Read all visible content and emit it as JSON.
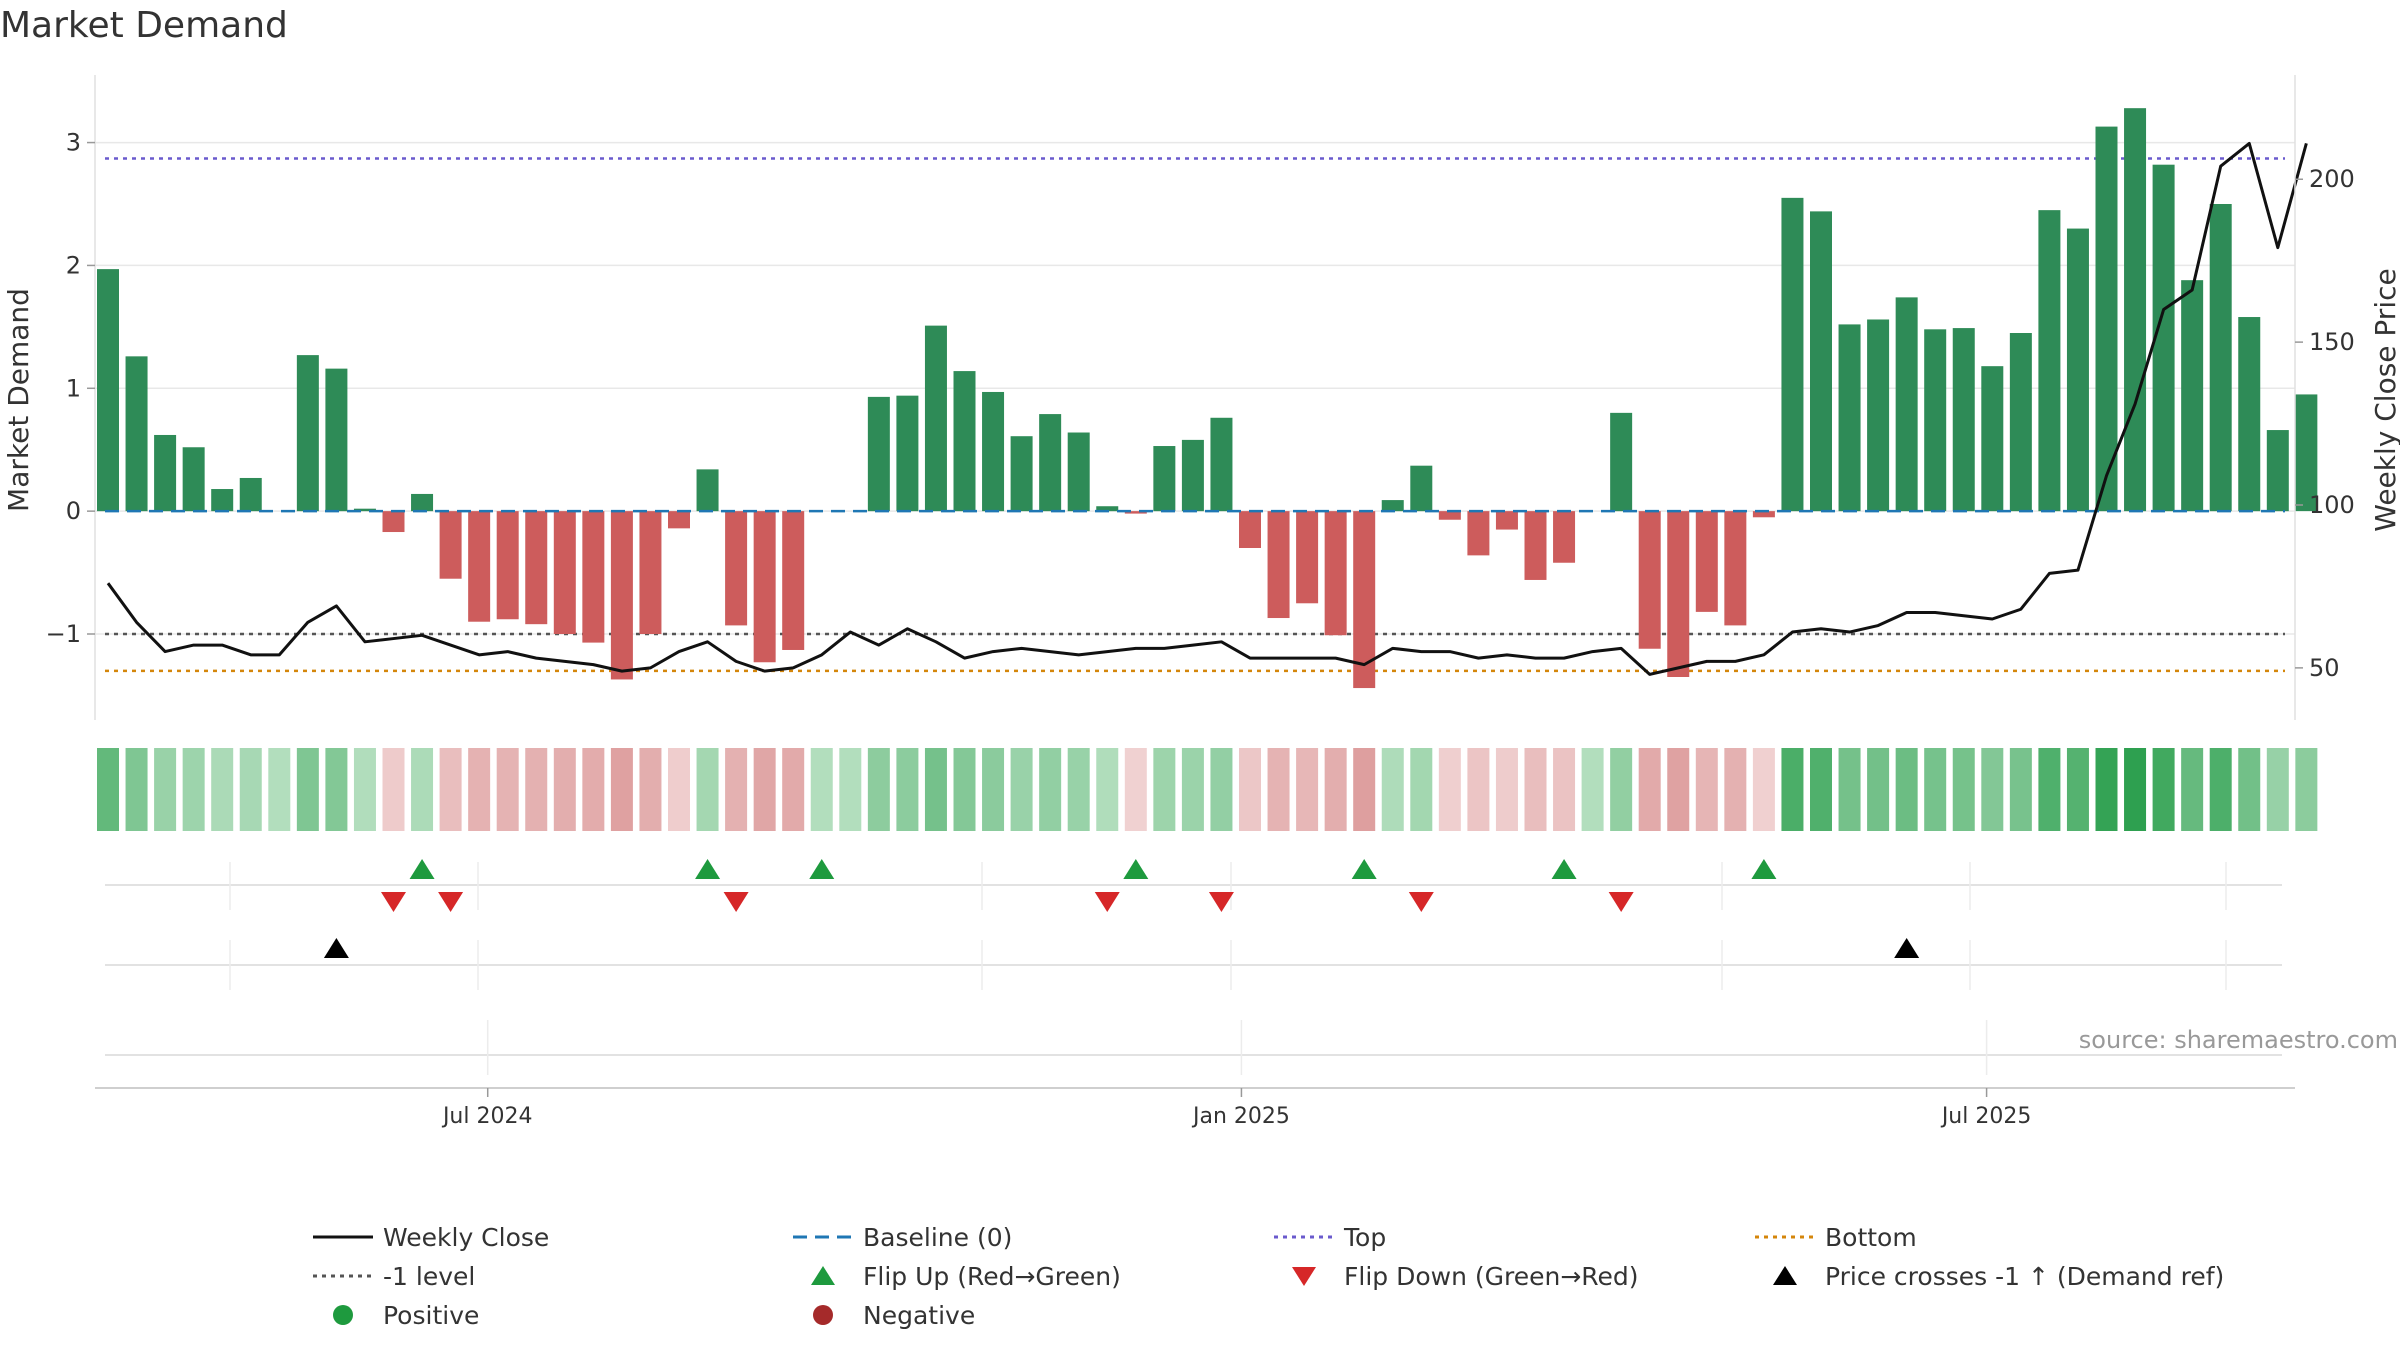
{
  "title": "Market Demand",
  "source": "source: sharemaestro.com",
  "colors": {
    "bar_pos": "#2e8b57",
    "bar_neg": "#cd5c5c",
    "close": "#111111",
    "baseline": "#1f77b4",
    "top": "#6a5acd",
    "bottom": "#d4860b",
    "minus1": "#555555",
    "flip_up": "#1e9a3e",
    "flip_down": "#d62728",
    "cross": "#000000",
    "positive": "#1e9a3e",
    "negative": "#a52a2a",
    "grid": "#e8e8e8"
  },
  "chart_data": {
    "type": "bar",
    "title": "Market Demand",
    "ylabel": "Market Demand",
    "y2label": "Weekly Close Price",
    "ylim": [
      -1.7,
      3.55
    ],
    "y2lim": [
      34,
      232
    ],
    "yticks": [
      -1,
      0,
      1,
      2,
      3
    ],
    "yticklabels": [
      "−1",
      "0",
      "1",
      "2",
      "3"
    ],
    "y2ticks": [
      50,
      100,
      150,
      200
    ],
    "y2ticklabels": [
      "50",
      "100",
      "150",
      "200"
    ],
    "x_ticks": [
      {
        "label": "Jul 2024",
        "week": 13.3
      },
      {
        "label": "Jan 2025",
        "week": 39.7
      },
      {
        "label": "Jul 2025",
        "week": 65.8
      }
    ],
    "levels": {
      "baseline": 0,
      "top": 2.87,
      "minus1": -1,
      "bottom": -1.3
    },
    "demand": [
      1.97,
      1.26,
      0.62,
      0.52,
      0.18,
      0.27,
      0.0,
      1.27,
      1.16,
      0.02,
      -0.17,
      0.14,
      -0.55,
      -0.9,
      -0.88,
      -0.92,
      -1.0,
      -1.07,
      -1.37,
      -1.0,
      -0.14,
      0.34,
      -0.93,
      -1.23,
      -1.13,
      0.0,
      0.0,
      0.93,
      0.94,
      1.51,
      1.14,
      0.97,
      0.61,
      0.79,
      0.64,
      0.04,
      -0.02,
      0.53,
      0.58,
      0.76,
      -0.3,
      -0.87,
      -0.75,
      -1.01,
      -1.44,
      0.09,
      0.37,
      -0.07,
      -0.36,
      -0.15,
      -0.56,
      -0.42,
      0.0,
      0.8,
      -1.12,
      -1.35,
      -0.82,
      -0.93,
      -0.05,
      2.55,
      2.44,
      1.52,
      1.56,
      1.74,
      1.48,
      1.49,
      1.18,
      1.45,
      2.45,
      2.3,
      3.13,
      3.28,
      2.82,
      1.88,
      2.5,
      1.58,
      0.66,
      0.95
    ],
    "weekly_close": [
      76,
      64,
      55,
      57,
      57,
      54,
      54,
      64,
      69,
      58,
      59,
      60,
      57,
      54,
      55,
      53,
      52,
      51,
      49,
      50,
      55,
      58,
      52,
      49,
      50,
      54,
      61,
      57,
      62,
      58,
      53,
      55,
      56,
      55,
      54,
      55,
      56,
      56,
      57,
      58,
      53,
      53,
      53,
      53,
      51,
      56,
      55,
      55,
      53,
      54,
      53,
      53,
      55,
      56,
      48,
      50,
      52,
      52,
      54,
      61,
      62,
      61,
      63,
      67,
      67,
      66,
      65,
      68,
      79,
      80,
      109,
      131,
      160,
      166,
      204,
      211,
      179,
      211
    ],
    "flip_up_weeks": [
      11,
      21,
      25,
      36,
      44,
      51,
      58
    ],
    "flip_down_weeks": [
      10,
      12,
      22,
      35,
      39,
      46,
      53
    ],
    "cross_weeks": [
      8,
      63
    ],
    "legend": [
      {
        "label": "Weekly Close",
        "kind": "line-solid",
        "color": "close"
      },
      {
        "label": "Baseline (0)",
        "kind": "line-dash",
        "color": "baseline"
      },
      {
        "label": "Top",
        "kind": "line-dot",
        "color": "top"
      },
      {
        "label": "Bottom",
        "kind": "line-dot",
        "color": "bottom"
      },
      {
        "label": "-1 level",
        "kind": "line-dot",
        "color": "minus1"
      },
      {
        "label": "Flip Up (Red→Green)",
        "kind": "tri-up",
        "color": "flip_up"
      },
      {
        "label": "Flip Down (Green→Red)",
        "kind": "tri-down",
        "color": "flip_down"
      },
      {
        "label": "Price crosses -1 ↑ (Demand ref)",
        "kind": "tri-up",
        "color": "cross"
      },
      {
        "label": "Positive",
        "kind": "dot",
        "color": "positive"
      },
      {
        "label": "Negative",
        "kind": "dot",
        "color": "negative"
      }
    ]
  }
}
